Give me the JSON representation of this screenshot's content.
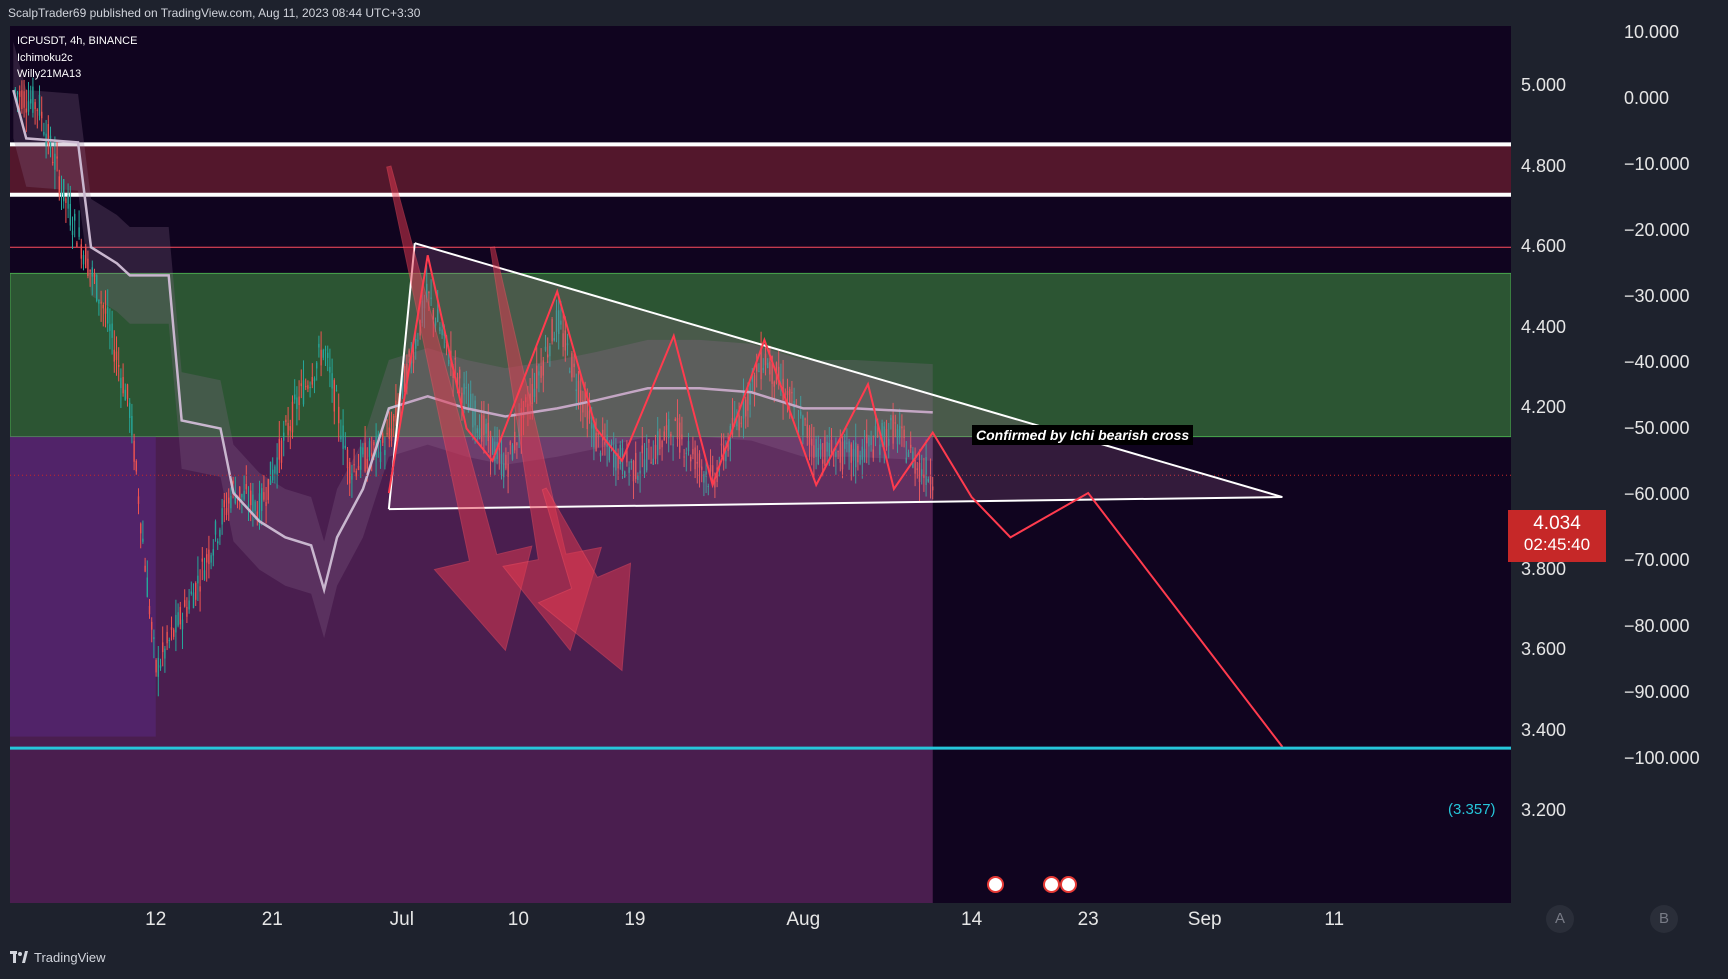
{
  "header": {
    "publisher": "ScalpTrader69 published on TradingView.com, Aug 11, 2023 08:44 UTC+3:30"
  },
  "legend": {
    "symbol": "ICPUSDT, 4h, BINANCE",
    "indicator1": "Ichimoku2c",
    "indicator2": "Willy21MA13"
  },
  "price_axis": [
    "5.000",
    "4.800",
    "4.600",
    "4.400",
    "4.200",
    "3.800",
    "3.600",
    "3.400",
    "3.200"
  ],
  "oscillator_axis": [
    "10.000",
    "0.000",
    "−10.000",
    "−20.000",
    "−30.000",
    "−40.000",
    "−50.000",
    "−60.000",
    "−70.000",
    "−80.000",
    "−90.000",
    "−100.000"
  ],
  "time_axis": [
    "12",
    "21",
    "Jul",
    "10",
    "19",
    "Aug",
    "14",
    "23",
    "Sep",
    "11"
  ],
  "current_price": {
    "value": "4.034",
    "countdown": "02:45:40"
  },
  "annotations": {
    "ichi_cross": "Confirmed by Ichi bearish cross",
    "target": "(3.357)"
  },
  "scale_buttons": {
    "a": "A",
    "b": "B"
  },
  "footer": {
    "brand": "TradingView"
  },
  "colors": {
    "bg": "#10041f",
    "resistance_zone": "#5b1a2e",
    "support_zone": "#2e5a35",
    "bearish_projection": "#ff3b4e",
    "target_line": "#26c6da",
    "price_badge": "#c62828"
  },
  "chart_data": {
    "type": "line",
    "symbol": "ICPUSDT",
    "timeframe": "4h",
    "exchange": "BINANCE",
    "price_ylim": [
      3.2,
      5.1
    ],
    "oscillator_ylim": [
      -100,
      10
    ],
    "price_ticks": [
      5.0,
      4.8,
      4.6,
      4.4,
      4.2,
      3.8,
      3.6,
      3.4,
      3.2
    ],
    "oscillator_ticks": [
      10,
      0,
      -10,
      -20,
      -30,
      -40,
      -50,
      -60,
      -70,
      -80,
      -90,
      -100
    ],
    "current_price": 4.034,
    "horizontal_levels": [
      {
        "name": "resistance-zone",
        "from": 4.73,
        "to": 4.855
      },
      {
        "name": "red-line",
        "price": 4.6
      },
      {
        "name": "support-zone",
        "from": 4.13,
        "to": 4.535
      },
      {
        "name": "target",
        "price": 3.357
      }
    ],
    "triangle": {
      "upper": [
        [
          "2023-07-02",
          4.61
        ],
        [
          "2023-09-07",
          3.98
        ]
      ],
      "lower": [
        [
          "2023-06-30",
          3.95
        ],
        [
          "2023-09-07",
          3.98
        ]
      ]
    },
    "wave_path": [
      [
        "2023-06-30",
        3.99
      ],
      [
        "2023-07-03",
        4.58
      ],
      [
        "2023-07-06",
        4.15
      ],
      [
        "2023-07-08",
        4.07
      ],
      [
        "2023-07-13",
        4.49
      ],
      [
        "2023-07-16",
        4.15
      ],
      [
        "2023-07-18",
        4.07
      ],
      [
        "2023-07-22",
        4.38
      ],
      [
        "2023-07-25",
        4.01
      ],
      [
        "2023-07-29",
        4.37
      ],
      [
        "2023-08-02",
        4.01
      ],
      [
        "2023-08-06",
        4.26
      ],
      [
        "2023-08-08",
        4.0
      ],
      [
        "2023-08-11",
        4.14
      ],
      [
        "2023-08-14",
        3.98
      ],
      [
        "2023-08-17",
        3.88
      ],
      [
        "2023-08-23",
        3.99
      ],
      [
        "2023-09-07",
        3.36
      ]
    ],
    "price_path": [
      [
        "2023-06-01",
        4.99
      ],
      [
        "2023-06-03",
        4.95
      ],
      [
        "2023-06-05",
        4.72
      ],
      [
        "2023-06-08",
        4.45
      ],
      [
        "2023-06-10",
        4.2
      ],
      [
        "2023-06-12",
        3.55
      ],
      [
        "2023-06-15",
        3.75
      ],
      [
        "2023-06-18",
        4.0
      ],
      [
        "2023-06-20",
        3.95
      ],
      [
        "2023-06-23",
        4.22
      ],
      [
        "2023-06-25",
        4.35
      ],
      [
        "2023-06-27",
        4.05
      ],
      [
        "2023-06-30",
        4.12
      ],
      [
        "2023-07-03",
        4.48
      ],
      [
        "2023-07-06",
        4.22
      ],
      [
        "2023-07-09",
        4.05
      ],
      [
        "2023-07-13",
        4.42
      ],
      [
        "2023-07-16",
        4.12
      ],
      [
        "2023-07-19",
        4.05
      ],
      [
        "2023-07-22",
        4.15
      ],
      [
        "2023-07-25",
        4.02
      ],
      [
        "2023-07-29",
        4.33
      ],
      [
        "2023-08-02",
        4.1
      ],
      [
        "2023-08-05",
        4.08
      ],
      [
        "2023-08-08",
        4.15
      ],
      [
        "2023-08-10",
        4.05
      ],
      [
        "2023-08-11",
        4.034
      ]
    ],
    "kijun_path": [
      [
        "2023-06-01",
        4.99
      ],
      [
        "2023-06-02",
        4.87
      ],
      [
        "2023-06-06",
        4.86
      ],
      [
        "2023-06-07",
        4.6
      ],
      [
        "2023-06-09",
        4.56
      ],
      [
        "2023-06-10",
        4.53
      ],
      [
        "2023-06-13",
        4.53
      ],
      [
        "2023-06-14",
        4.17
      ],
      [
        "2023-06-17",
        4.15
      ],
      [
        "2023-06-18",
        3.99
      ],
      [
        "2023-06-20",
        3.92
      ],
      [
        "2023-06-22",
        3.88
      ],
      [
        "2023-06-24",
        3.86
      ],
      [
        "2023-06-25",
        3.75
      ],
      [
        "2023-06-26",
        3.88
      ],
      [
        "2023-06-28",
        4.0
      ],
      [
        "2023-06-30",
        4.2
      ],
      [
        "2023-07-03",
        4.23
      ],
      [
        "2023-07-06",
        4.2
      ],
      [
        "2023-07-09",
        4.18
      ],
      [
        "2023-07-13",
        4.2
      ],
      [
        "2023-07-16",
        4.22
      ],
      [
        "2023-07-20",
        4.25
      ],
      [
        "2023-07-24",
        4.25
      ],
      [
        "2023-07-28",
        4.24
      ],
      [
        "2023-08-01",
        4.2
      ],
      [
        "2023-08-05",
        4.2
      ],
      [
        "2023-08-11",
        4.19
      ]
    ],
    "bearish_arrows": [
      {
        "from": [
          "2023-06-30",
          4.8
        ],
        "to": [
          "2023-07-09",
          3.6
        ]
      },
      {
        "from": [
          "2023-07-08",
          4.6
        ],
        "to": [
          "2023-07-14",
          3.6
        ]
      },
      {
        "from": [
          "2023-07-12",
          4.0
        ],
        "to": [
          "2023-07-18",
          3.55
        ]
      }
    ],
    "grid": false,
    "legend_placement": "top-left"
  }
}
